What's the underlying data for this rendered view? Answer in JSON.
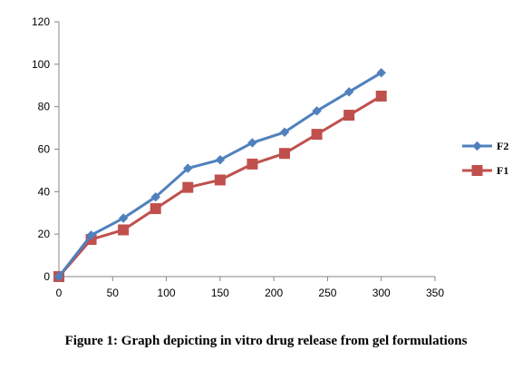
{
  "caption": "Figure 1: Graph depicting in vitro drug release from gel formulations",
  "chart_data": {
    "type": "line",
    "title": "",
    "xlabel": "",
    "ylabel": "",
    "xlim": [
      0,
      350
    ],
    "ylim": [
      0,
      120
    ],
    "xticks": [
      0,
      50,
      100,
      150,
      200,
      250,
      300,
      350
    ],
    "yticks": [
      0,
      20,
      40,
      60,
      80,
      100,
      120
    ],
    "grid": false,
    "legend_position": "right",
    "series": [
      {
        "name": "F2",
        "color": "#4F81BD",
        "marker": "diamond",
        "x": [
          0,
          30,
          60,
          90,
          120,
          150,
          180,
          210,
          240,
          270,
          300
        ],
        "y": [
          0,
          19.5,
          27.5,
          37.5,
          51,
          55,
          63,
          68,
          78,
          87,
          96
        ]
      },
      {
        "name": "F1",
        "color": "#C0504D",
        "marker": "square",
        "x": [
          0,
          30,
          60,
          90,
          120,
          150,
          180,
          210,
          240,
          270,
          300
        ],
        "y": [
          0,
          17.5,
          22,
          32,
          42,
          45.5,
          53,
          58,
          67,
          76,
          85
        ]
      }
    ]
  }
}
